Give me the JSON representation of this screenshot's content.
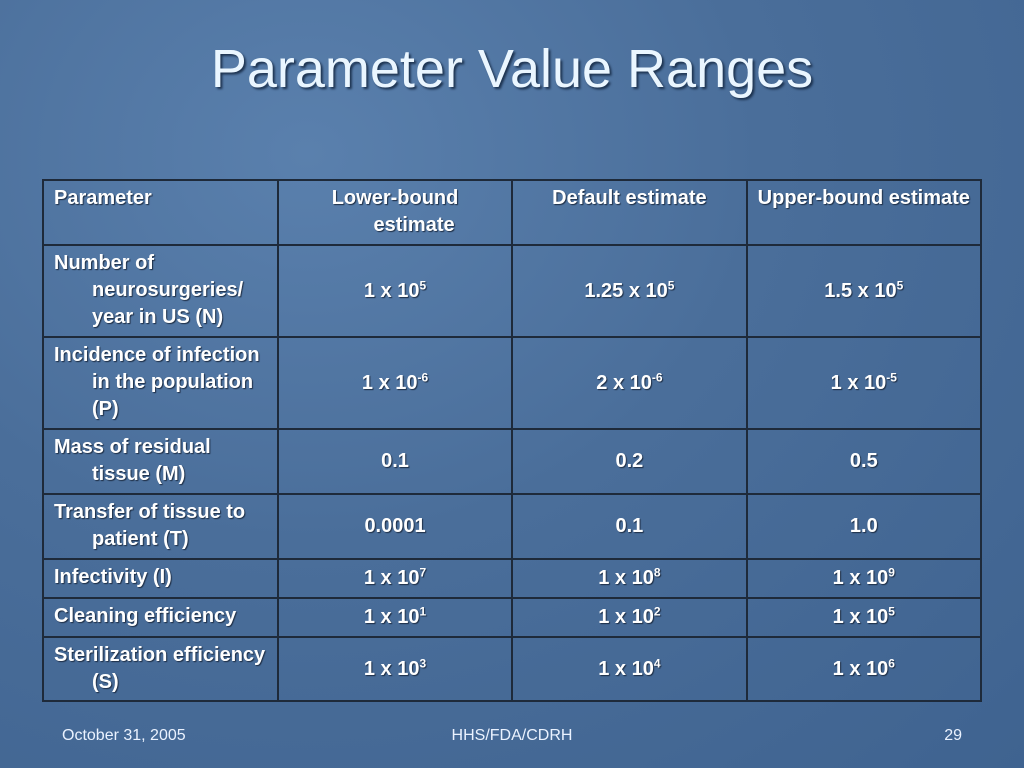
{
  "title": "Parameter Value Ranges",
  "table": {
    "header": [
      "Parameter",
      "Lower-bound estimate",
      "Default estimate",
      "Upper-bound estimate"
    ],
    "rows": [
      [
        "Number of neurosurgeries/ year in US (N)",
        {
          "base": "1 x 10",
          "exp": "5"
        },
        {
          "base": "1.25 x 10",
          "exp": "5"
        },
        {
          "base": "1.5 x 10",
          "exp": "5"
        }
      ],
      [
        "Incidence of infection in the population (P)",
        {
          "base": "1 x 10",
          "exp": "-6"
        },
        {
          "base": "2 x 10",
          "exp": "-6"
        },
        {
          "base": "1 x 10",
          "exp": "-5"
        }
      ],
      [
        "Mass of residual tissue (M)",
        "0.1",
        "0.2",
        "0.5"
      ],
      [
        "Transfer of tissue to patient (T)",
        "0.0001",
        "0.1",
        "1.0"
      ],
      [
        "Infectivity (I)",
        {
          "base": "1 x 10",
          "exp": "7"
        },
        {
          "base": "1 x 10",
          "exp": "8"
        },
        {
          "base": "1 x 10",
          "exp": "9"
        }
      ],
      [
        "Cleaning efficiency",
        {
          "base": "1 x 10",
          "exp": "1"
        },
        {
          "base": "1 x 10",
          "exp": "2"
        },
        {
          "base": "1 x 10",
          "exp": "5"
        }
      ],
      [
        "Sterilization efficiency (S)",
        {
          "base": "1 x 10",
          "exp": "3"
        },
        {
          "base": "1 x 10",
          "exp": "4"
        },
        {
          "base": "1 x 10",
          "exp": "6"
        }
      ]
    ]
  },
  "footer": {
    "date": "October 31, 2005",
    "org": "HHS/FDA/CDRH",
    "page": "29"
  }
}
